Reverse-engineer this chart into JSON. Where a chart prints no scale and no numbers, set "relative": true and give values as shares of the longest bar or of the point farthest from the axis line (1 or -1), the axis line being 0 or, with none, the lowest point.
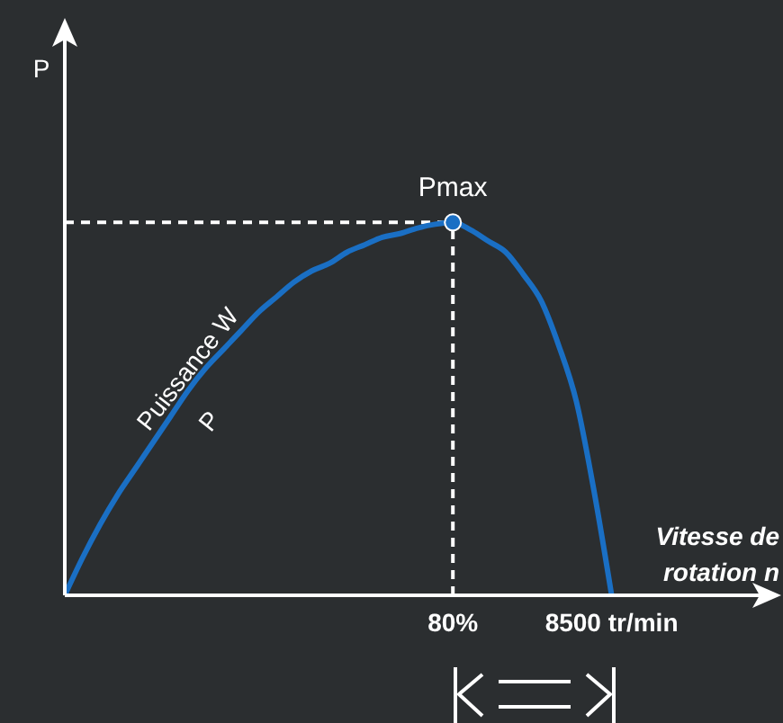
{
  "chart_data": {
    "type": "line",
    "relative": true,
    "xlabel": "Vitesse de rotation n",
    "categories": [
      null,
      null,
      null,
      null,
      null,
      null,
      null,
      null,
      null,
      null,
      null,
      null,
      null,
      null,
      null,
      null,
      null,
      null,
      null,
      null,
      null,
      null,
      "80%",
      null,
      null,
      null,
      null,
      null,
      null,
      null,
      null,
      "8500 tr/min",
      null,
      null,
      null,
      null,
      null,
      null,
      null,
      null,
      null
    ],
    "line_style": "solid",
    "series": [
      {
        "type": "line",
        "marker": "none",
        "color": "#1a6fc4",
        "values": [
          0,
          0.1,
          0.19,
          0.27,
          0.34,
          0.41,
          0.48,
          0.55,
          0.61,
          0.66,
          0.71,
          0.76,
          0.8,
          0.84,
          0.87,
          0.89,
          0.92,
          0.94,
          0.96,
          0.97,
          0.985,
          0.995,
          1,
          0.98,
          0.95,
          0.92,
          0.86,
          0.79,
          0.67,
          0.52,
          0.28,
          0,
          null,
          null,
          null,
          null,
          null,
          null,
          null,
          null,
          null
        ]
      },
      {
        "type": "scatter",
        "marker": "circle",
        "color": "#1a6fc4",
        "x": [
          "80%"
        ],
        "values": [
          1
        ]
      }
    ],
    "ref_lines": [
      {
        "axis": "x",
        "value": "80%",
        "color": "#ffffff",
        "line_style": "dashed"
      },
      {
        "axis": "y",
        "value": 1,
        "color": "#ffffff",
        "line_style": "dashed"
      }
    ],
    "annotations": [
      {
        "text": "Pmax",
        "x": "80%",
        "y": 1
      },
      "Puissance W",
      "P",
      "P"
    ]
  }
}
